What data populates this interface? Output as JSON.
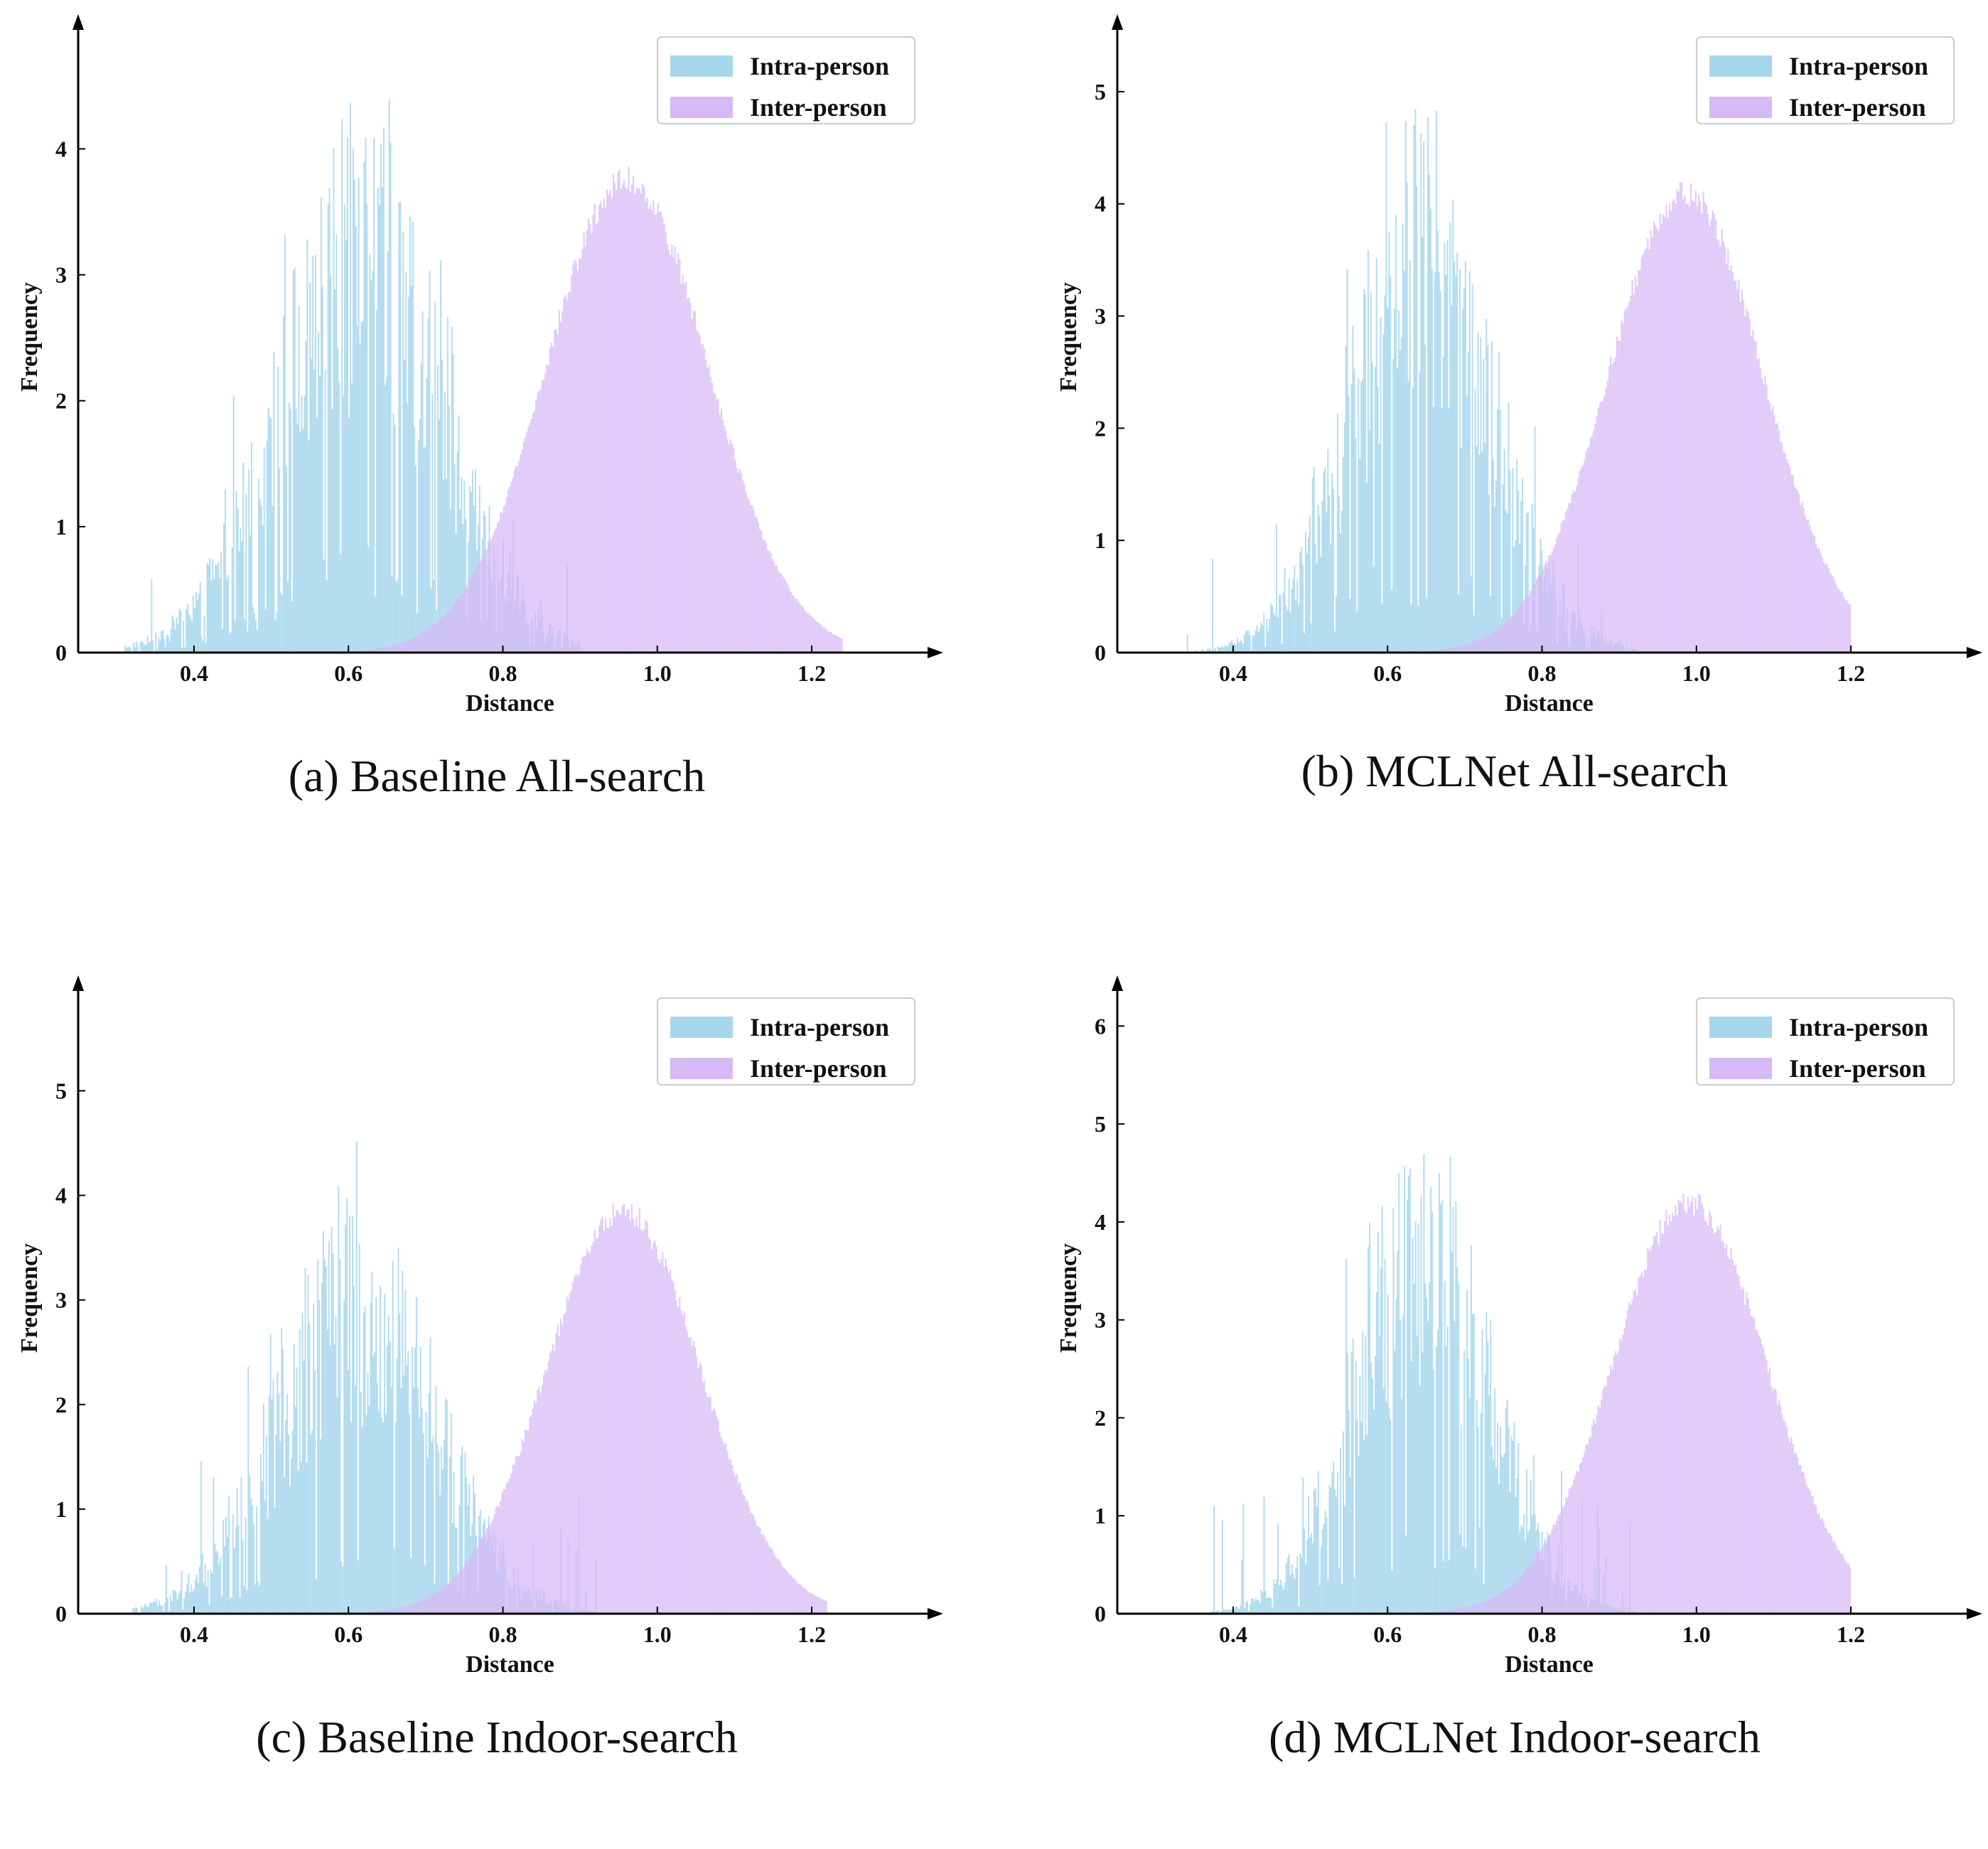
{
  "colors": {
    "intra": "#a6d6ec",
    "inter": "#d7b9f5",
    "axis": "#000000",
    "legend_border": "#cccccc"
  },
  "chart_data": [
    {
      "id": "a",
      "type": "histogram",
      "caption": "(a) Baseline All-search",
      "xlabel": "Distance",
      "ylabel": "Frequency",
      "xlim": [
        0.25,
        1.35
      ],
      "ylim": [
        0,
        4.9
      ],
      "xticks": [
        0.4,
        0.6,
        0.8,
        1.0,
        1.2
      ],
      "xtick_labels": [
        "0.4",
        "0.6",
        "0.8",
        "1.0",
        "1.2"
      ],
      "yticks": [
        0,
        1,
        2,
        3,
        4
      ],
      "ytick_labels": [
        "0",
        "1",
        "2",
        "3",
        "4"
      ],
      "legend": {
        "position": "top-right",
        "entries": [
          "Intra-person",
          "Inter-person"
        ]
      },
      "series": [
        {
          "name": "Intra-person",
          "kind": "noisy",
          "mean": 0.615,
          "std": 0.105,
          "peak": 3.4,
          "noise": 0.28,
          "range": [
            0.31,
            0.9
          ]
        },
        {
          "name": "Inter-person",
          "kind": "smooth",
          "mean": 0.96,
          "std": 0.105,
          "peak": 3.75,
          "range": [
            0.58,
            1.24
          ]
        }
      ]
    },
    {
      "id": "b",
      "type": "histogram",
      "caption": "(b) MCLNet All-search",
      "xlabel": "Distance",
      "ylabel": "Frequency",
      "xlim": [
        0.25,
        1.35
      ],
      "ylim": [
        0,
        5.5
      ],
      "xticks": [
        0.4,
        0.6,
        0.8,
        1.0,
        1.2
      ],
      "xtick_labels": [
        "0.4",
        "0.6",
        "0.8",
        "1.0",
        "1.2"
      ],
      "yticks": [
        0,
        1,
        2,
        3,
        4,
        5
      ],
      "ytick_labels": [
        "0",
        "1",
        "2",
        "3",
        "4",
        "5"
      ],
      "legend": {
        "position": "top-right",
        "entries": [
          "Intra-person",
          "Inter-person"
        ]
      },
      "series": [
        {
          "name": "Intra-person",
          "kind": "noisy",
          "mean": 0.645,
          "std": 0.09,
          "peak": 3.8,
          "noise": 0.3,
          "range": [
            0.34,
            0.92
          ]
        },
        {
          "name": "Inter-person",
          "kind": "smooth",
          "mean": 0.985,
          "std": 0.1,
          "peak": 4.1,
          "range": [
            0.62,
            1.2
          ]
        }
      ]
    },
    {
      "id": "c",
      "type": "histogram",
      "caption": "(c) Baseline Indoor-search",
      "xlabel": "Distance",
      "ylabel": "Frequency",
      "xlim": [
        0.25,
        1.35
      ],
      "ylim": [
        0,
        5.9
      ],
      "xticks": [
        0.4,
        0.6,
        0.8,
        1.0,
        1.2
      ],
      "xtick_labels": [
        "0.4",
        "0.6",
        "0.8",
        "1.0",
        "1.2"
      ],
      "yticks": [
        0,
        1,
        2,
        3,
        4,
        5
      ],
      "ytick_labels": [
        "0",
        "1",
        "2",
        "3",
        "4",
        "5"
      ],
      "legend": {
        "position": "top-right",
        "entries": [
          "Intra-person",
          "Inter-person"
        ]
      },
      "series": [
        {
          "name": "Intra-person",
          "kind": "noisy",
          "mean": 0.61,
          "std": 0.1,
          "peak": 3.2,
          "noise": 0.38,
          "range": [
            0.32,
            0.92
          ]
        },
        {
          "name": "Inter-person",
          "kind": "smooth",
          "mean": 0.955,
          "std": 0.1,
          "peak": 3.85,
          "range": [
            0.6,
            1.22
          ]
        }
      ]
    },
    {
      "id": "d",
      "type": "histogram",
      "caption": "(d) MCLNet Indoor-search",
      "xlabel": "Distance",
      "ylabel": "Frequency",
      "xlim": [
        0.25,
        1.35
      ],
      "ylim": [
        0,
        6.3
      ],
      "xticks": [
        0.4,
        0.6,
        0.8,
        1.0,
        1.2
      ],
      "xtick_labels": [
        "0.4",
        "0.6",
        "0.8",
        "1.0",
        "1.2"
      ],
      "yticks": [
        0,
        1,
        2,
        3,
        4,
        5,
        6
      ],
      "ytick_labels": [
        "0",
        "1",
        "2",
        "3",
        "4",
        "5",
        "6"
      ],
      "legend": {
        "position": "top-right",
        "entries": [
          "Intra-person",
          "Inter-person"
        ]
      },
      "series": [
        {
          "name": "Intra-person",
          "kind": "noisy",
          "mean": 0.645,
          "std": 0.085,
          "peak": 4.0,
          "noise": 0.38,
          "range": [
            0.36,
            0.92
          ]
        },
        {
          "name": "Inter-person",
          "kind": "smooth",
          "mean": 0.99,
          "std": 0.1,
          "peak": 4.2,
          "range": [
            0.64,
            1.2
          ]
        }
      ]
    }
  ]
}
